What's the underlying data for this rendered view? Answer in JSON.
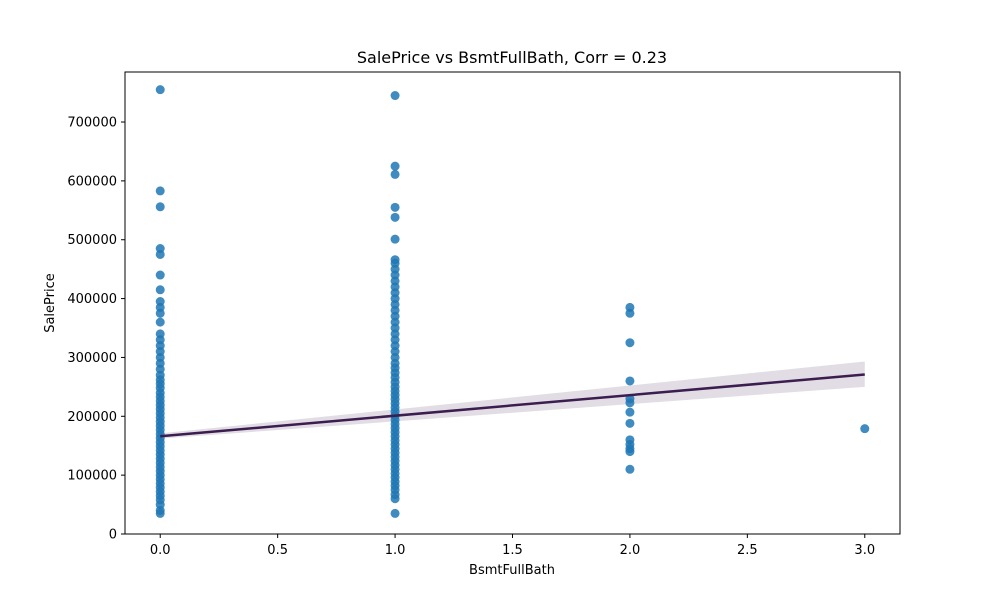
{
  "chart_data": {
    "type": "scatter",
    "title": "SalePrice vs BsmtFullBath, Corr = 0.23",
    "xlabel": "BsmtFullBath",
    "ylabel": "SalePrice",
    "xlim": [
      -0.15,
      3.15
    ],
    "ylim": [
      0,
      785000
    ],
    "x_ticks": [
      0.0,
      0.5,
      1.0,
      1.5,
      2.0,
      2.5,
      3.0
    ],
    "x_tick_labels": [
      "0.0",
      "0.5",
      "1.0",
      "1.5",
      "2.0",
      "2.5",
      "3.0"
    ],
    "y_ticks": [
      0,
      100000,
      200000,
      300000,
      400000,
      500000,
      600000,
      700000
    ],
    "y_tick_labels": [
      "0",
      "100000",
      "200000",
      "300000",
      "400000",
      "500000",
      "600000",
      "700000"
    ],
    "grid": false,
    "point_color": "#1f77b4",
    "line_color": "#3b1d4f",
    "band_color": "#3b1d4f",
    "series": [
      {
        "points": [
          {
            "x": 0,
            "y": 755000
          },
          {
            "x": 0,
            "y": 583000
          },
          {
            "x": 0,
            "y": 556000
          },
          {
            "x": 0,
            "y": 485000
          },
          {
            "x": 0,
            "y": 475000
          },
          {
            "x": 0,
            "y": 440000
          },
          {
            "x": 0,
            "y": 415000
          },
          {
            "x": 0,
            "y": 395000
          },
          {
            "x": 0,
            "y": 385000
          },
          {
            "x": 0,
            "y": 375000
          },
          {
            "x": 0,
            "y": 360000
          },
          {
            "x": 0,
            "y": 340000
          },
          {
            "x": 0,
            "y": 330000
          },
          {
            "x": 0,
            "y": 320000
          },
          {
            "x": 0,
            "y": 310000
          },
          {
            "x": 0,
            "y": 300000
          },
          {
            "x": 0,
            "y": 290000
          },
          {
            "x": 0,
            "y": 280000
          },
          {
            "x": 0,
            "y": 270000
          },
          {
            "x": 0,
            "y": 262000
          },
          {
            "x": 0,
            "y": 255000
          },
          {
            "x": 0,
            "y": 248000
          },
          {
            "x": 0,
            "y": 240000
          },
          {
            "x": 0,
            "y": 233000
          },
          {
            "x": 0,
            "y": 226000
          },
          {
            "x": 0,
            "y": 219000
          },
          {
            "x": 0,
            "y": 212000
          },
          {
            "x": 0,
            "y": 205000
          },
          {
            "x": 0,
            "y": 198000
          },
          {
            "x": 0,
            "y": 191000
          },
          {
            "x": 0,
            "y": 184000
          },
          {
            "x": 0,
            "y": 177000
          },
          {
            "x": 0,
            "y": 170000
          },
          {
            "x": 0,
            "y": 163000
          },
          {
            "x": 0,
            "y": 156000
          },
          {
            "x": 0,
            "y": 149000
          },
          {
            "x": 0,
            "y": 142000
          },
          {
            "x": 0,
            "y": 135000
          },
          {
            "x": 0,
            "y": 128000
          },
          {
            "x": 0,
            "y": 121000
          },
          {
            "x": 0,
            "y": 114000
          },
          {
            "x": 0,
            "y": 107000
          },
          {
            "x": 0,
            "y": 100000
          },
          {
            "x": 0,
            "y": 93000
          },
          {
            "x": 0,
            "y": 86000
          },
          {
            "x": 0,
            "y": 79000
          },
          {
            "x": 0,
            "y": 72000
          },
          {
            "x": 0,
            "y": 65000
          },
          {
            "x": 0,
            "y": 58000
          },
          {
            "x": 0,
            "y": 50000
          },
          {
            "x": 0,
            "y": 40000
          },
          {
            "x": 0,
            "y": 35000
          },
          {
            "x": 1,
            "y": 745000
          },
          {
            "x": 1,
            "y": 625000
          },
          {
            "x": 1,
            "y": 611000
          },
          {
            "x": 1,
            "y": 555000
          },
          {
            "x": 1,
            "y": 538000
          },
          {
            "x": 1,
            "y": 501000
          },
          {
            "x": 1,
            "y": 466000
          },
          {
            "x": 1,
            "y": 460000
          },
          {
            "x": 1,
            "y": 450000
          },
          {
            "x": 1,
            "y": 440000
          },
          {
            "x": 1,
            "y": 430000
          },
          {
            "x": 1,
            "y": 420000
          },
          {
            "x": 1,
            "y": 410000
          },
          {
            "x": 1,
            "y": 400000
          },
          {
            "x": 1,
            "y": 390000
          },
          {
            "x": 1,
            "y": 380000
          },
          {
            "x": 1,
            "y": 370000
          },
          {
            "x": 1,
            "y": 360000
          },
          {
            "x": 1,
            "y": 350000
          },
          {
            "x": 1,
            "y": 340000
          },
          {
            "x": 1,
            "y": 330000
          },
          {
            "x": 1,
            "y": 320000
          },
          {
            "x": 1,
            "y": 310000
          },
          {
            "x": 1,
            "y": 300000
          },
          {
            "x": 1,
            "y": 290000
          },
          {
            "x": 1,
            "y": 282000
          },
          {
            "x": 1,
            "y": 274000
          },
          {
            "x": 1,
            "y": 266000
          },
          {
            "x": 1,
            "y": 258000
          },
          {
            "x": 1,
            "y": 250000
          },
          {
            "x": 1,
            "y": 243000
          },
          {
            "x": 1,
            "y": 236000
          },
          {
            "x": 1,
            "y": 229000
          },
          {
            "x": 1,
            "y": 222000
          },
          {
            "x": 1,
            "y": 215000
          },
          {
            "x": 1,
            "y": 208000
          },
          {
            "x": 1,
            "y": 201000
          },
          {
            "x": 1,
            "y": 194000
          },
          {
            "x": 1,
            "y": 187000
          },
          {
            "x": 1,
            "y": 180000
          },
          {
            "x": 1,
            "y": 173000
          },
          {
            "x": 1,
            "y": 166000
          },
          {
            "x": 1,
            "y": 159000
          },
          {
            "x": 1,
            "y": 152000
          },
          {
            "x": 1,
            "y": 145000
          },
          {
            "x": 1,
            "y": 138000
          },
          {
            "x": 1,
            "y": 131000
          },
          {
            "x": 1,
            "y": 124000
          },
          {
            "x": 1,
            "y": 117000
          },
          {
            "x": 1,
            "y": 110000
          },
          {
            "x": 1,
            "y": 103000
          },
          {
            "x": 1,
            "y": 96000
          },
          {
            "x": 1,
            "y": 89000
          },
          {
            "x": 1,
            "y": 82000
          },
          {
            "x": 1,
            "y": 75000
          },
          {
            "x": 1,
            "y": 67000
          },
          {
            "x": 1,
            "y": 60000
          },
          {
            "x": 1,
            "y": 35000
          },
          {
            "x": 2,
            "y": 385000
          },
          {
            "x": 2,
            "y": 375000
          },
          {
            "x": 2,
            "y": 325000
          },
          {
            "x": 2,
            "y": 260000
          },
          {
            "x": 2,
            "y": 230000
          },
          {
            "x": 2,
            "y": 223000
          },
          {
            "x": 2,
            "y": 207000
          },
          {
            "x": 2,
            "y": 188000
          },
          {
            "x": 2,
            "y": 160000
          },
          {
            "x": 2,
            "y": 152000
          },
          {
            "x": 2,
            "y": 145000
          },
          {
            "x": 2,
            "y": 140000
          },
          {
            "x": 2,
            "y": 110000
          },
          {
            "x": 3,
            "y": 179000
          }
        ]
      }
    ],
    "regression": {
      "x_range": [
        0,
        3
      ],
      "y_start": 166000,
      "y_end": 271000,
      "ci_start": [
        162000,
        171000
      ],
      "ci_end": [
        250000,
        293000
      ]
    }
  }
}
